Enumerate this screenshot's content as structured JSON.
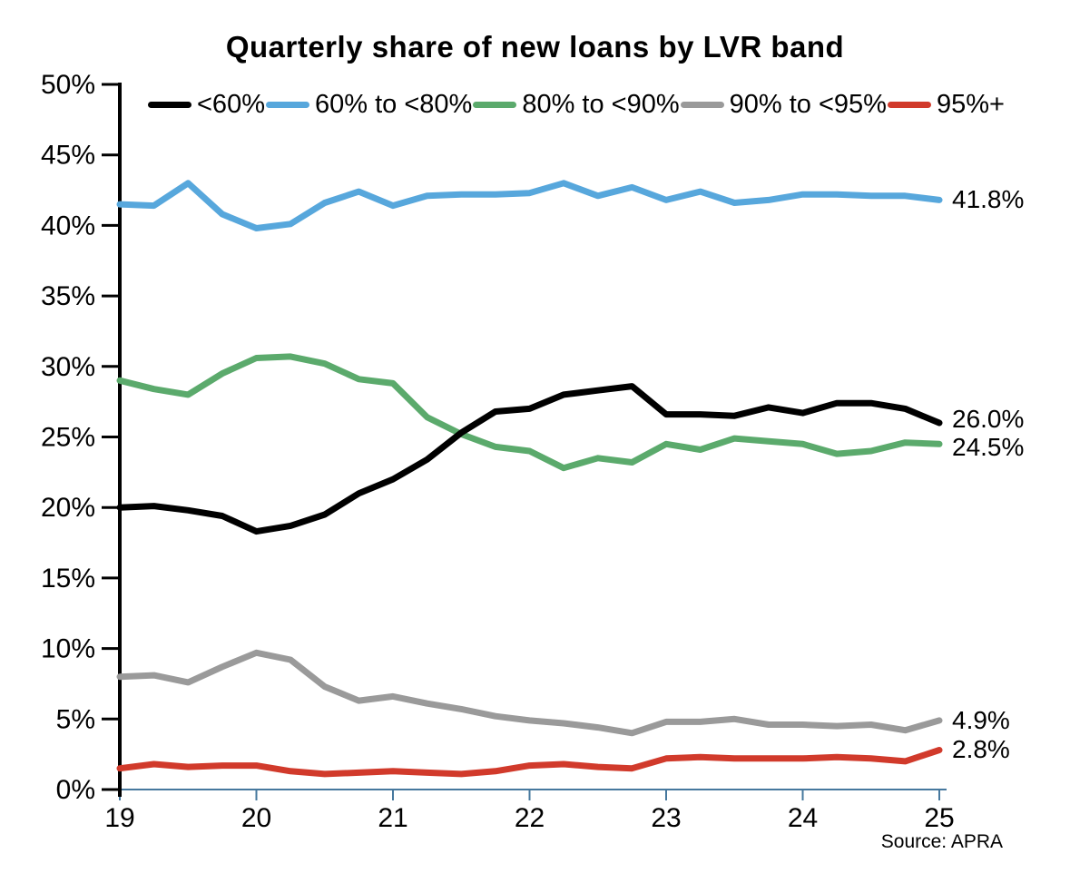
{
  "page": {
    "background": "#ffffff"
  },
  "chart_data": {
    "type": "line",
    "title": "Quarterly share of new loans by LVR band",
    "source": "Source: APRA",
    "grid": "off",
    "legend_position": "top",
    "xlabel": "",
    "ylabel": "",
    "xlim": [
      19,
      25
    ],
    "ylim": [
      0,
      50
    ],
    "xticks": {
      "values": [
        19,
        20,
        21,
        22,
        23,
        24,
        25
      ],
      "labels": [
        "19",
        "20",
        "21",
        "22",
        "23",
        "24",
        "25"
      ]
    },
    "yticks": {
      "values": [
        0,
        5,
        10,
        15,
        20,
        25,
        30,
        35,
        40,
        45,
        50
      ],
      "labels": [
        "0%",
        "5%",
        "10%",
        "15%",
        "20%",
        "25%",
        "30%",
        "35%",
        "40%",
        "45%",
        "50%"
      ]
    },
    "axis_colors": {
      "y_axis": "#000000",
      "x_axis": "#46789E"
    },
    "x": [
      19,
      19.25,
      19.5,
      19.75,
      20,
      20.25,
      20.5,
      20.75,
      21,
      21.25,
      21.5,
      21.75,
      22,
      22.25,
      22.5,
      22.75,
      23,
      23.25,
      23.5,
      23.75,
      24,
      24.25,
      24.5,
      24.75,
      25
    ],
    "series": [
      {
        "name": "<60%",
        "color": "#000000",
        "end_label": "26.0%",
        "values": [
          20.0,
          20.1,
          19.8,
          19.4,
          18.3,
          18.7,
          19.5,
          21.0,
          22.0,
          23.4,
          25.3,
          26.8,
          27.0,
          28.0,
          28.3,
          28.6,
          26.6,
          26.6,
          26.5,
          27.1,
          26.7,
          27.4,
          27.4,
          27.0,
          26.0
        ]
      },
      {
        "name": "60% to <80%",
        "color": "#57A7DC",
        "end_label": "41.8%",
        "values": [
          41.5,
          41.4,
          43.0,
          40.8,
          39.8,
          40.1,
          41.6,
          42.4,
          41.4,
          42.1,
          42.2,
          42.2,
          42.3,
          43.0,
          42.1,
          42.7,
          41.8,
          42.4,
          41.6,
          41.8,
          42.2,
          42.2,
          42.1,
          42.1,
          41.8
        ]
      },
      {
        "name": "80% to <90%",
        "color": "#5BAA6C",
        "end_label": "24.5%",
        "values": [
          29.0,
          28.4,
          28.0,
          29.5,
          30.6,
          30.7,
          30.2,
          29.1,
          28.8,
          26.4,
          25.2,
          24.3,
          24.0,
          22.8,
          23.5,
          23.2,
          24.5,
          24.1,
          24.9,
          24.7,
          24.5,
          23.8,
          24.0,
          24.6,
          24.5
        ]
      },
      {
        "name": "90% to <95%",
        "color": "#9A9A9A",
        "end_label": "4.9%",
        "values": [
          8.0,
          8.1,
          7.6,
          8.7,
          9.7,
          9.2,
          7.3,
          6.3,
          6.6,
          6.1,
          5.7,
          5.2,
          4.9,
          4.7,
          4.4,
          4.0,
          4.8,
          4.8,
          5.0,
          4.6,
          4.6,
          4.5,
          4.6,
          4.2,
          4.9
        ]
      },
      {
        "name": "95%+",
        "color": "#D13A2B",
        "end_label": "2.8%",
        "values": [
          1.5,
          1.8,
          1.6,
          1.7,
          1.7,
          1.3,
          1.1,
          1.2,
          1.3,
          1.2,
          1.1,
          1.3,
          1.7,
          1.8,
          1.6,
          1.5,
          2.2,
          2.3,
          2.2,
          2.2,
          2.2,
          2.3,
          2.2,
          2.0,
          2.8
        ]
      }
    ],
    "draw_order": [
      1,
      2,
      3,
      4,
      0
    ]
  }
}
